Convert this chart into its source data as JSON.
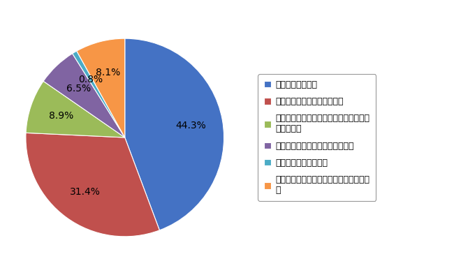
{
  "values": [
    44.4,
    31.5,
    8.9,
    6.5,
    0.8,
    8.1
  ],
  "label_texts": [
    "絶対に結婚したい",
    "結婚したい気持ちの方が強い",
    "結婚したいか結婚したくないかはっきり\n分からない",
    "結婚したくない気持ちの方が強い",
    "絶対に結婚したくない",
    "結婚について、しっかり考えたことはな\nい"
  ],
  "colors": [
    "#4472C4",
    "#C0504D",
    "#9BBB59",
    "#8064A2",
    "#4BACC6",
    "#F79646"
  ],
  "background_color": "#FFFFFF",
  "autopct_fontsize": 10,
  "legend_fontsize": 9
}
